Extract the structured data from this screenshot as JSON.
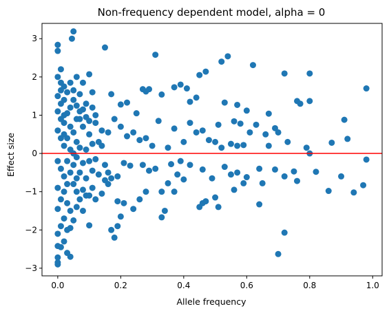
{
  "chart_data": {
    "type": "scatter",
    "title": "Non-frequency dependent model, alpha = 0",
    "xlabel": "Allele frequency",
    "ylabel": "Effect size",
    "xlim": [
      -0.05,
      1.03
    ],
    "ylim": [
      -3.2,
      3.4
    ],
    "xticks": [
      0.0,
      0.2,
      0.4,
      0.6,
      0.8,
      1.0
    ],
    "xtick_labels": [
      "0.0",
      "0.2",
      "0.4",
      "0.6",
      "0.8",
      "1.0"
    ],
    "yticks": [
      -3,
      -2,
      -1,
      0,
      1,
      2,
      3
    ],
    "ytick_labels": [
      "−3",
      "−2",
      "−1",
      "0",
      "1",
      "2",
      "3"
    ],
    "grid": false,
    "reference_line": {
      "y": 0,
      "color": "#ff0000"
    },
    "marker_color": "#1f77b4",
    "points": [
      [
        0.05,
        3.19
      ],
      [
        0.045,
        3.0
      ],
      [
        0.0,
        2.84
      ],
      [
        0.0,
        2.68
      ],
      [
        0.15,
        2.77
      ],
      [
        0.31,
        2.58
      ],
      [
        0.54,
        2.54
      ],
      [
        0.52,
        2.4
      ],
      [
        0.62,
        2.31
      ],
      [
        0.72,
        2.09
      ],
      [
        0.8,
        2.09
      ],
      [
        0.45,
        2.05
      ],
      [
        0.47,
        2.14
      ],
      [
        0.98,
        1.7
      ],
      [
        0.53,
        1.33
      ],
      [
        0.57,
        1.27
      ],
      [
        0.6,
        1.12
      ],
      [
        0.67,
        1.04
      ],
      [
        0.76,
        1.37
      ],
      [
        0.77,
        1.3
      ],
      [
        0.8,
        1.37
      ],
      [
        0.51,
        0.75
      ],
      [
        0.56,
        0.84
      ],
      [
        0.58,
        0.78
      ],
      [
        0.63,
        0.75
      ],
      [
        0.69,
        0.66
      ],
      [
        0.7,
        0.55
      ],
      [
        0.41,
        1.7
      ],
      [
        0.44,
        1.46
      ],
      [
        0.37,
        1.73
      ],
      [
        0.39,
        1.8
      ],
      [
        0.42,
        1.35
      ],
      [
        0.27,
        1.68
      ],
      [
        0.29,
        1.68
      ],
      [
        0.2,
        1.28
      ],
      [
        0.22,
        1.33
      ],
      [
        0.17,
        1.55
      ],
      [
        0.25,
        1.05
      ],
      [
        0.28,
        1.62
      ],
      [
        0.33,
        1.54
      ],
      [
        0.11,
        1.6
      ],
      [
        0.1,
        2.07
      ],
      [
        0.08,
        1.85
      ],
      [
        0.07,
        1.55
      ],
      [
        0.09,
        1.3
      ],
      [
        0.06,
        2.0
      ],
      [
        0.05,
        1.4
      ],
      [
        0.04,
        1.2
      ],
      [
        0.03,
        1.6
      ],
      [
        0.02,
        1.0
      ],
      [
        0.06,
        0.9
      ],
      [
        0.08,
        0.7
      ],
      [
        0.1,
        0.5
      ],
      [
        0.12,
        0.8
      ],
      [
        0.14,
        0.6
      ],
      [
        0.16,
        0.55
      ],
      [
        0.18,
        0.9
      ],
      [
        0.2,
        0.7
      ],
      [
        0.22,
        0.45
      ],
      [
        0.24,
        0.55
      ],
      [
        0.26,
        0.35
      ],
      [
        0.28,
        0.4
      ],
      [
        0.3,
        0.2
      ],
      [
        0.32,
        0.85
      ],
      [
        0.35,
        0.15
      ],
      [
        0.37,
        0.65
      ],
      [
        0.4,
        0.3
      ],
      [
        0.42,
        0.8
      ],
      [
        0.44,
        0.55
      ],
      [
        0.46,
        0.6
      ],
      [
        0.48,
        0.35
      ],
      [
        0.5,
        0.3
      ],
      [
        0.52,
        0.15
      ],
      [
        0.55,
        0.25
      ],
      [
        0.57,
        0.2
      ],
      [
        0.59,
        0.22
      ],
      [
        0.61,
        0.55
      ],
      [
        0.66,
        0.5
      ],
      [
        0.67,
        0.2
      ],
      [
        0.73,
        0.3
      ],
      [
        0.79,
        0.15
      ],
      [
        0.87,
        0.28
      ],
      [
        0.91,
        0.88
      ],
      [
        0.92,
        0.38
      ],
      [
        0.8,
        0.0
      ],
      [
        0.98,
        -0.16
      ],
      [
        0.75,
        -0.47
      ],
      [
        0.72,
        -0.6
      ],
      [
        0.76,
        -0.72
      ],
      [
        0.82,
        -0.48
      ],
      [
        0.69,
        -0.42
      ],
      [
        0.64,
        -0.4
      ],
      [
        0.6,
        -0.62
      ],
      [
        0.59,
        -0.78
      ],
      [
        0.57,
        -0.5
      ],
      [
        0.53,
        -0.35
      ],
      [
        0.55,
        -0.55
      ],
      [
        0.49,
        -0.65
      ],
      [
        0.46,
        -0.42
      ],
      [
        0.42,
        -0.3
      ],
      [
        0.39,
        -0.2
      ],
      [
        0.36,
        -0.28
      ],
      [
        0.38,
        -0.55
      ],
      [
        0.4,
        -0.68
      ],
      [
        0.35,
        -0.78
      ],
      [
        0.31,
        -0.4
      ],
      [
        0.29,
        -0.45
      ],
      [
        0.27,
        -0.3
      ],
      [
        0.23,
        -0.32
      ],
      [
        0.21,
        -0.25
      ],
      [
        0.19,
        -0.6
      ],
      [
        0.17,
        -0.65
      ],
      [
        0.15,
        -0.7
      ],
      [
        0.13,
        -0.55
      ],
      [
        0.11,
        -0.45
      ],
      [
        0.09,
        -0.65
      ],
      [
        0.07,
        -0.5
      ],
      [
        0.05,
        -0.3
      ],
      [
        0.03,
        -0.8
      ],
      [
        0.08,
        -0.95
      ],
      [
        0.1,
        -1.1
      ],
      [
        0.12,
        -1.2
      ],
      [
        0.14,
        -1.05
      ],
      [
        0.16,
        -0.8
      ],
      [
        0.19,
        -1.25
      ],
      [
        0.21,
        -1.3
      ],
      [
        0.24,
        -1.45
      ],
      [
        0.26,
        -1.2
      ],
      [
        0.28,
        -1.0
      ],
      [
        0.33,
        -1.0
      ],
      [
        0.34,
        -1.5
      ],
      [
        0.37,
        -1.0
      ],
      [
        0.45,
        -1.4
      ],
      [
        0.46,
        -1.3
      ],
      [
        0.47,
        -1.25
      ],
      [
        0.5,
        -1.15
      ],
      [
        0.51,
        -1.4
      ],
      [
        0.56,
        -0.95
      ],
      [
        0.64,
        -1.33
      ],
      [
        0.65,
        -0.78
      ],
      [
        0.7,
        -2.63
      ],
      [
        0.72,
        -2.07
      ],
      [
        0.86,
        -0.98
      ],
      [
        0.9,
        -0.6
      ],
      [
        0.94,
        -1.02
      ],
      [
        0.97,
        -0.83
      ],
      [
        0.33,
        -1.67
      ],
      [
        0.2,
        -1.65
      ],
      [
        0.19,
        -1.9
      ],
      [
        0.18,
        -2.2
      ],
      [
        0.17,
        -2.0
      ],
      [
        0.1,
        -1.88
      ],
      [
        0.06,
        -1.0
      ],
      [
        0.04,
        -1.5
      ],
      [
        0.03,
        -2.0
      ],
      [
        0.02,
        -2.3
      ],
      [
        0.0,
        -2.42
      ],
      [
        0.0,
        -2.72
      ],
      [
        0.0,
        -2.9
      ],
      [
        0.0,
        -2.85
      ],
      [
        0.04,
        -2.7
      ],
      [
        0.03,
        -2.6
      ],
      [
        0.01,
        -2.45
      ],
      [
        0.01,
        2.2
      ],
      [
        0.0,
        2.0
      ],
      [
        0.01,
        1.85
      ],
      [
        0.02,
        1.75
      ],
      [
        0.0,
        1.5
      ],
      [
        0.01,
        1.3
      ],
      [
        0.0,
        1.1
      ],
      [
        0.02,
        0.8
      ],
      [
        0.0,
        0.6
      ],
      [
        0.01,
        0.4
      ],
      [
        0.02,
        0.2
      ],
      [
        0.0,
        -0.2
      ],
      [
        0.01,
        -0.4
      ],
      [
        0.02,
        -0.6
      ],
      [
        0.0,
        -0.9
      ],
      [
        0.01,
        -1.2
      ],
      [
        0.0,
        -1.45
      ],
      [
        0.02,
        -1.7
      ],
      [
        0.01,
        -1.9
      ],
      [
        0.0,
        -2.1
      ],
      [
        0.03,
        0.4
      ],
      [
        0.04,
        0.7
      ],
      [
        0.05,
        0.55
      ],
      [
        0.06,
        0.3
      ],
      [
        0.07,
        0.9
      ],
      [
        0.04,
        -0.5
      ],
      [
        0.05,
        -0.8
      ],
      [
        0.06,
        -0.65
      ],
      [
        0.07,
        -1.2
      ],
      [
        0.08,
        -1.5
      ],
      [
        0.09,
        -1.1
      ],
      [
        0.02,
        1.4
      ],
      [
        0.03,
        1.05
      ],
      [
        0.04,
        1.85
      ],
      [
        0.05,
        1.65
      ],
      [
        0.01,
        1.65
      ],
      [
        0.06,
        1.25
      ],
      [
        0.07,
        1.1
      ],
      [
        0.08,
        1.15
      ],
      [
        0.09,
        0.95
      ],
      [
        0.1,
        0.85
      ],
      [
        0.11,
        1.2
      ],
      [
        0.12,
        1.0
      ],
      [
        0.13,
        0.3
      ],
      [
        0.14,
        0.2
      ],
      [
        0.15,
        -0.3
      ],
      [
        0.16,
        -0.5
      ],
      [
        0.11,
        -0.9
      ],
      [
        0.06,
        -1.4
      ],
      [
        0.05,
        -1.75
      ],
      [
        0.04,
        -1.95
      ],
      [
        0.03,
        -1.3
      ],
      [
        0.02,
        -1.0
      ],
      [
        0.01,
        0.9
      ],
      [
        0.02,
        0.5
      ],
      [
        0.03,
        -0.2
      ],
      [
        0.04,
        0.1
      ],
      [
        0.05,
        0.0
      ],
      [
        0.06,
        -0.1
      ],
      [
        0.07,
        0.15
      ],
      [
        0.08,
        -0.25
      ],
      [
        0.09,
        0.1
      ],
      [
        0.1,
        -0.2
      ],
      [
        0.11,
        0.25
      ],
      [
        0.12,
        -0.15
      ]
    ]
  }
}
